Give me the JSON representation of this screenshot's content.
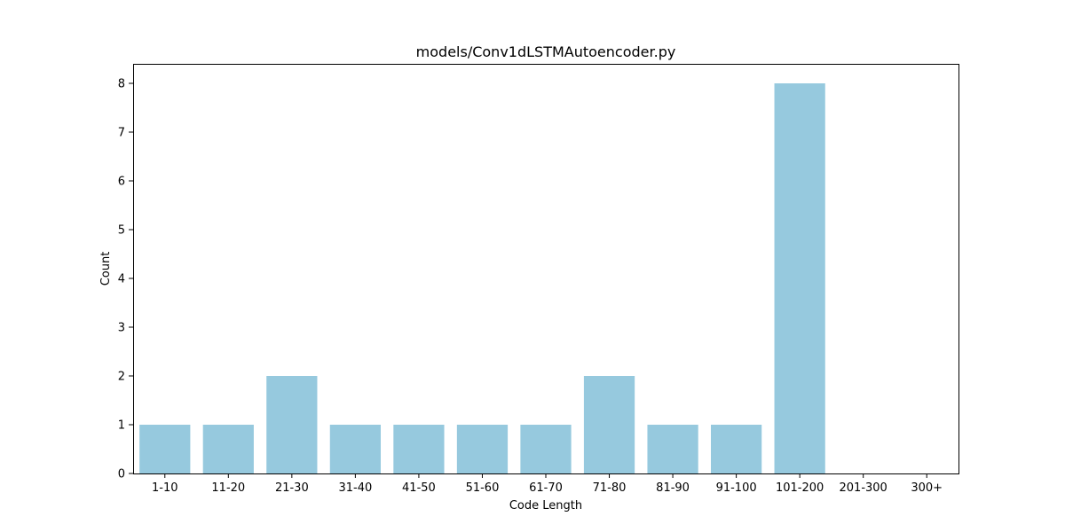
{
  "chart_data": {
    "type": "bar",
    "title": "models/Conv1dLSTMAutoencoder.py",
    "xlabel": "Code Length",
    "ylabel": "Count",
    "categories": [
      "1-10",
      "11-20",
      "21-30",
      "31-40",
      "41-50",
      "51-60",
      "61-70",
      "71-80",
      "81-90",
      "91-100",
      "101-200",
      "201-300",
      "300+"
    ],
    "values": [
      1,
      1,
      2,
      1,
      1,
      1,
      1,
      2,
      1,
      1,
      8,
      0,
      0
    ],
    "ylim": [
      0,
      8.4
    ],
    "yticks": [
      0,
      1,
      2,
      3,
      4,
      5,
      6,
      7,
      8
    ],
    "bar_color": "#96c9de",
    "grid": false,
    "legend": "none"
  }
}
